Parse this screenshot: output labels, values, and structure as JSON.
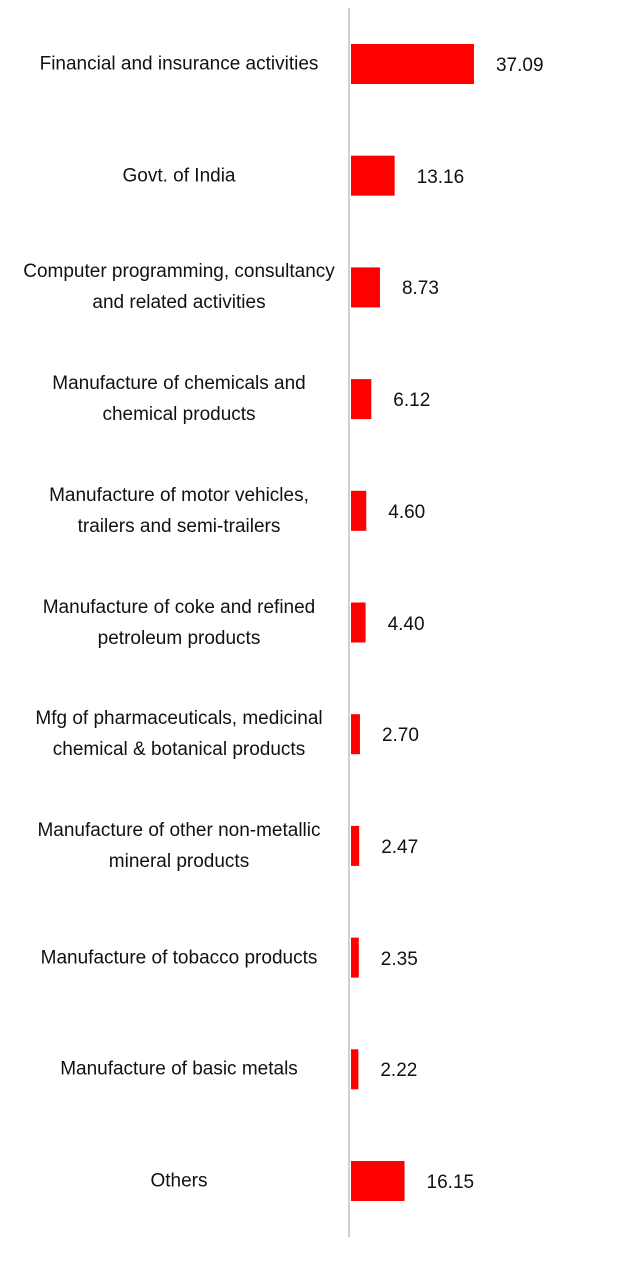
{
  "chart_data": {
    "type": "bar",
    "orientation": "horizontal",
    "categories": [
      "Financial and insurance activities",
      "Govt. of India",
      "Computer programming, consultancy and related activities",
      "Manufacture of chemicals and chemical products",
      "Manufacture of motor vehicles, trailers and semi-trailers",
      "Manufacture of coke and refined petroleum products",
      "Mfg of pharmaceuticals, medicinal chemical & botanical products",
      "Manufacture of other non-metallic mineral products",
      "Manufacture of tobacco products",
      "Manufacture of basic metals",
      "Others"
    ],
    "values": [
      37.09,
      13.16,
      8.73,
      6.12,
      4.6,
      4.4,
      2.7,
      2.47,
      2.35,
      2.22,
      16.15
    ],
    "value_labels": [
      "37.09",
      "13.16",
      "8.73",
      "6.12",
      "4.60",
      "4.40",
      "2.70",
      "2.47",
      "2.35",
      "2.22",
      "16.15"
    ],
    "color": "#ff0000"
  }
}
